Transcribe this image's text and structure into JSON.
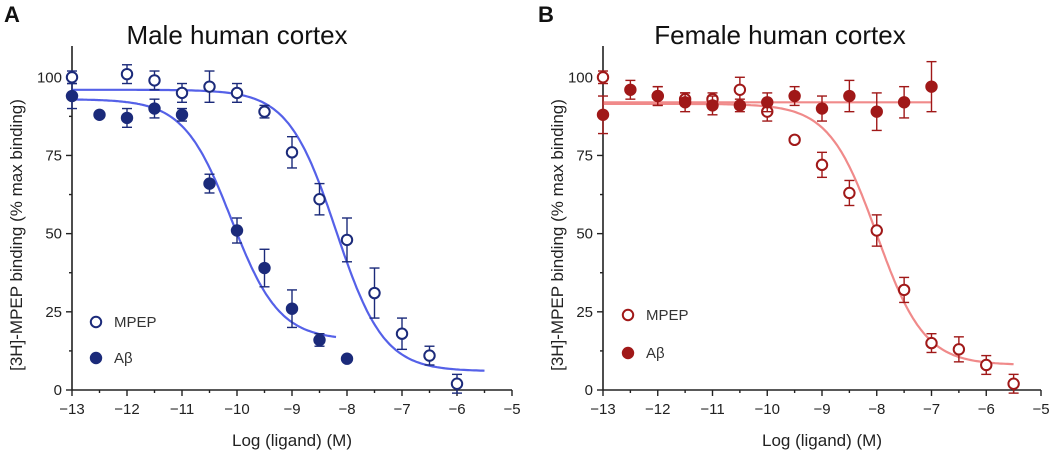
{
  "chart_data": [
    {
      "type": "scatter",
      "panel": "A",
      "title": "Male human cortex",
      "xlabel": "Log (ligand) (M)",
      "ylabel": "[3H]-MPEP binding (% max binding)",
      "xlim": [
        -13,
        -5
      ],
      "ylim": [
        0,
        110
      ],
      "xticks": [
        -13,
        -12,
        -11,
        -10,
        -9,
        -8,
        -7,
        -6,
        -5
      ],
      "yticks": [
        0,
        25,
        50,
        75,
        100
      ],
      "legend_position": "bottom-left",
      "colors": {
        "marker": "#1b2a7a",
        "curve": "#5561e8"
      },
      "series": [
        {
          "name": "MPEP",
          "marker": "open-circle",
          "x": [
            -13,
            -12,
            -11.5,
            -11,
            -10.5,
            -10,
            -9.5,
            -9,
            -8.5,
            -8,
            -7.5,
            -7,
            -6.5,
            -6
          ],
          "y": [
            100,
            101,
            99,
            95,
            97,
            95,
            89,
            76,
            61,
            48,
            31,
            18,
            11,
            2
          ],
          "err": [
            2,
            3,
            3,
            3,
            5,
            3,
            2,
            5,
            5,
            7,
            8,
            5,
            3,
            3
          ],
          "fit": {
            "top": 96,
            "bottom": 6,
            "logEC50": -8.2,
            "hill": 1.0,
            "x_range": [
              -13,
              -5.5
            ]
          }
        },
        {
          "name": "Aβ",
          "marker": "filled-circle",
          "x": [
            -13,
            -12.5,
            -12,
            -11.5,
            -11,
            -10.5,
            -10,
            -9.5,
            -9,
            -8.5,
            -8
          ],
          "y": [
            94,
            88,
            87,
            90,
            88,
            66,
            51,
            39,
            26,
            16,
            10
          ],
          "err": [
            4,
            1,
            3,
            3,
            2,
            3,
            4,
            6,
            6,
            2,
            1
          ],
          "fit": {
            "top": 93,
            "bottom": 16,
            "logEC50": -10.1,
            "hill": 1.0,
            "x_range": [
              -13,
              -8.2
            ]
          }
        }
      ]
    },
    {
      "type": "scatter",
      "panel": "B",
      "title": "Female human cortex",
      "xlabel": "Log (ligand) (M)",
      "ylabel": "[3H]-MPEP binding (% max binding)",
      "xlim": [
        -13,
        -5
      ],
      "ylim": [
        0,
        110
      ],
      "xticks": [
        -13,
        -12,
        -11,
        -10,
        -9,
        -8,
        -7,
        -6,
        -5
      ],
      "yticks": [
        0,
        25,
        50,
        75,
        100
      ],
      "legend_position": "bottom-left",
      "colors": {
        "marker": "#a01818",
        "curve": "#f08a8a"
      },
      "series": [
        {
          "name": "MPEP",
          "marker": "open-circle",
          "x": [
            -13,
            -12,
            -11.5,
            -11,
            -10.5,
            -10,
            -9.5,
            -9,
            -8.5,
            -8,
            -7.5,
            -7,
            -6.5,
            -6,
            -5.5
          ],
          "y": [
            100,
            94,
            93,
            93,
            96,
            89,
            80,
            72,
            63,
            51,
            32,
            15,
            13,
            8,
            2
          ],
          "err": [
            2,
            3,
            2,
            2,
            4,
            3,
            1,
            4,
            4,
            5,
            4,
            3,
            4,
            3,
            3
          ],
          "fit": {
            "top": 91.5,
            "bottom": 8,
            "logEC50": -8.0,
            "hill": 1.0,
            "x_range": [
              -13,
              -5.5
            ]
          }
        },
        {
          "name": "Aβ",
          "marker": "filled-circle",
          "x": [
            -13,
            -12.5,
            -12,
            -11.5,
            -11,
            -10.5,
            -10,
            -9.5,
            -9,
            -8.5,
            -8,
            -7.5,
            -7
          ],
          "y": [
            88,
            96,
            94,
            92,
            91,
            91,
            92,
            94,
            90,
            94,
            89,
            92,
            97
          ],
          "err": [
            6,
            3,
            3,
            3,
            3,
            2,
            3,
            3,
            4,
            5,
            6,
            5,
            8
          ],
          "fit": {
            "flat": 92,
            "x_range": [
              -13,
              -7
            ]
          }
        }
      ]
    }
  ]
}
